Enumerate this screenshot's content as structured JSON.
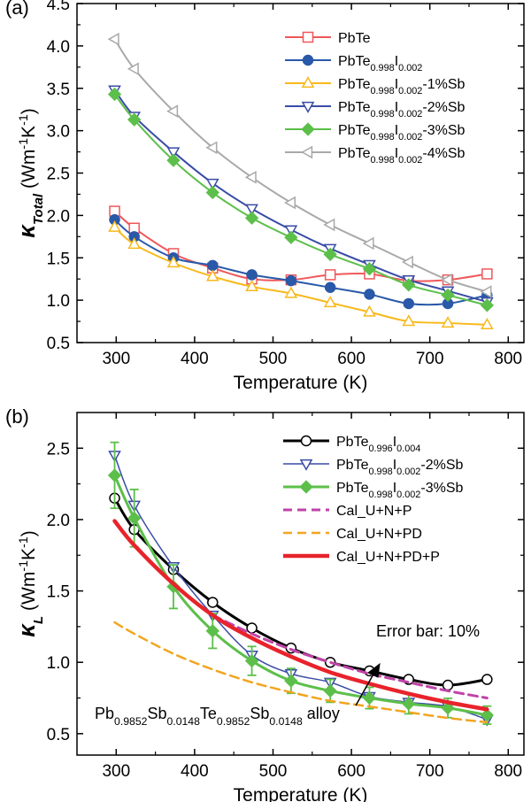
{
  "chart_data": [
    {
      "panel": "(a)",
      "type": "line",
      "xlabel": "Temperature (K)",
      "ylabel": {
        "main": "κ",
        "sub": "Total",
        "unit": "(Wm",
        "sup1": "-1",
        "mid": "K",
        "sup2": "-1",
        "end": ")"
      },
      "xlim": [
        250,
        820
      ],
      "ylim": [
        0.5,
        4.5
      ],
      "xticks": [
        "300",
        "400",
        "500",
        "600",
        "700",
        "800"
      ],
      "yticks": [
        "0.5",
        "1.0",
        "1.5",
        "2.0",
        "2.5",
        "3.0",
        "3.5",
        "4.0",
        "4.5"
      ],
      "legend_position": "top-right",
      "series": [
        {
          "name": "PbTe",
          "label_parts": [
            [
              "PbTe",
              ""
            ]
          ],
          "color": "#f0575a",
          "marker": "square",
          "filled": false,
          "x": [
            298,
            323,
            373,
            423,
            473,
            523,
            573,
            623,
            673,
            723,
            773
          ],
          "values": [
            2.05,
            1.85,
            1.55,
            1.38,
            1.25,
            1.24,
            1.3,
            1.31,
            1.23,
            1.24,
            1.31
          ]
        },
        {
          "name": "PbTe0.998I0.002",
          "label_parts": [
            [
              "PbTe",
              ""
            ],
            [
              "0.998",
              "sub"
            ],
            [
              "I",
              ""
            ],
            [
              "0.002",
              "sub"
            ]
          ],
          "color": "#2959a8",
          "marker": "circle",
          "filled": true,
          "x": [
            298,
            323,
            373,
            423,
            473,
            523,
            573,
            623,
            673,
            723,
            773
          ],
          "values": [
            1.95,
            1.75,
            1.5,
            1.41,
            1.3,
            1.23,
            1.15,
            1.07,
            0.96,
            0.96,
            1.06
          ]
        },
        {
          "name": "PbTe0.998I0.002-1%Sb",
          "label_parts": [
            [
              "PbTe",
              ""
            ],
            [
              "0.998",
              "sub"
            ],
            [
              "I",
              ""
            ],
            [
              "0.002",
              "sub"
            ],
            [
              "-1%Sb",
              ""
            ]
          ],
          "color": "#f7b91b",
          "marker": "triangle-up",
          "filled": false,
          "x": [
            298,
            323,
            373,
            423,
            473,
            523,
            573,
            623,
            673,
            723,
            773
          ],
          "values": [
            1.86,
            1.66,
            1.44,
            1.28,
            1.16,
            1.08,
            0.97,
            0.86,
            0.75,
            0.73,
            0.71
          ]
        },
        {
          "name": "PbTe0.998I0.002-2%Sb",
          "label_parts": [
            [
              "PbTe",
              ""
            ],
            [
              "0.998",
              "sub"
            ],
            [
              "I",
              ""
            ],
            [
              "0.002",
              "sub"
            ],
            [
              "-2%Sb",
              ""
            ]
          ],
          "color": "#3a4ca6",
          "marker": "triangle-down",
          "filled": false,
          "x": [
            298,
            323,
            373,
            423,
            473,
            523,
            573,
            623,
            673,
            723,
            773
          ],
          "values": [
            3.48,
            3.17,
            2.75,
            2.38,
            2.08,
            1.83,
            1.61,
            1.42,
            1.24,
            1.11,
            0.98
          ]
        },
        {
          "name": "PbTe0.998I0.002-3%Sb",
          "label_parts": [
            [
              "PbTe",
              ""
            ],
            [
              "0.998",
              "sub"
            ],
            [
              "I",
              ""
            ],
            [
              "0.002",
              "sub"
            ],
            [
              "-3%Sb",
              ""
            ]
          ],
          "color": "#5cbf4a",
          "marker": "diamond",
          "filled": true,
          "x": [
            298,
            323,
            373,
            423,
            473,
            523,
            573,
            623,
            673,
            723,
            773
          ],
          "values": [
            3.43,
            3.13,
            2.65,
            2.27,
            1.97,
            1.74,
            1.54,
            1.37,
            1.18,
            1.06,
            0.94
          ]
        },
        {
          "name": "PbTe0.998I0.002-4%Sb",
          "label_parts": [
            [
              "PbTe",
              ""
            ],
            [
              "0.998",
              "sub"
            ],
            [
              "I",
              ""
            ],
            [
              "0.002",
              "sub"
            ],
            [
              "-4%Sb",
              ""
            ]
          ],
          "color": "#a9a9a9",
          "marker": "triangle-left",
          "filled": false,
          "x": [
            298,
            323,
            373,
            423,
            473,
            523,
            573,
            623,
            673,
            723,
            773
          ],
          "values": [
            4.08,
            3.73,
            3.23,
            2.8,
            2.45,
            2.15,
            1.89,
            1.67,
            1.45,
            1.24,
            1.1
          ]
        }
      ]
    },
    {
      "panel": "(b)",
      "type": "line",
      "xlabel": "Temperature (K)",
      "ylabel": {
        "main": "κ",
        "sub": "L",
        "unit": "(Wm",
        "sup1": "-1",
        "mid": "K",
        "sup2": "-1",
        "end": ")"
      },
      "xlim": [
        250,
        820
      ],
      "ylim": [
        0.35,
        2.75
      ],
      "xticks": [
        "300",
        "400",
        "500",
        "600",
        "700",
        "800"
      ],
      "yticks": [
        "0.5",
        "1.0",
        "1.5",
        "2.0",
        "2.5"
      ],
      "legend_position": "top-right",
      "annotations": {
        "error_bar_note": "Error bar: 10%",
        "alloy_label_parts": [
          [
            "Pb",
            ""
          ],
          [
            "0.9852",
            "sub"
          ],
          [
            "Sb",
            ""
          ],
          [
            "0.0148",
            "sub"
          ],
          [
            "Te",
            ""
          ],
          [
            "0.9852",
            "sub"
          ],
          [
            "Sb",
            ""
          ],
          [
            "0.0148",
            "sub"
          ],
          [
            " alloy",
            ""
          ]
        ]
      },
      "series": [
        {
          "name": "PbTe0.996I0.004",
          "label_parts": [
            [
              "PbTe",
              ""
            ],
            [
              "0.996",
              "sub"
            ],
            [
              "I",
              ""
            ],
            [
              "0.004",
              "sub"
            ]
          ],
          "color": "#000000",
          "marker": "circle",
          "filled": false,
          "line_width": 3,
          "x": [
            298,
            323,
            373,
            423,
            473,
            523,
            573,
            623,
            673,
            723,
            773
          ],
          "values": [
            2.15,
            1.93,
            1.65,
            1.42,
            1.24,
            1.1,
            1.0,
            0.94,
            0.88,
            0.84,
            0.88
          ]
        },
        {
          "name": "PbTe0.998I0.002-2%Sb",
          "label_parts": [
            [
              "PbTe",
              ""
            ],
            [
              "0.998",
              "sub"
            ],
            [
              "I",
              ""
            ],
            [
              "0.002",
              "sub"
            ],
            [
              "-2%Sb",
              ""
            ]
          ],
          "color": "#3a4ca6",
          "marker": "triangle-down",
          "filled": false,
          "line_width": 1.5,
          "x": [
            298,
            323,
            373,
            423,
            473,
            523,
            573,
            623,
            673,
            723,
            773
          ],
          "values": [
            2.45,
            2.1,
            1.67,
            1.33,
            1.05,
            0.92,
            0.86,
            0.76,
            0.72,
            0.69,
            0.6
          ]
        },
        {
          "name": "PbTe0.998I0.002-3%Sb",
          "label_parts": [
            [
              "PbTe",
              ""
            ],
            [
              "0.998",
              "sub"
            ],
            [
              "I",
              ""
            ],
            [
              "0.002",
              "sub"
            ],
            [
              "-3%Sb",
              ""
            ]
          ],
          "color": "#5cbf4a",
          "marker": "diamond",
          "filled": true,
          "line_width": 3,
          "error_bars": 0.1,
          "x": [
            298,
            323,
            373,
            423,
            473,
            523,
            573,
            623,
            673,
            723,
            773
          ],
          "values": [
            2.31,
            2.01,
            1.53,
            1.22,
            1.01,
            0.87,
            0.8,
            0.75,
            0.71,
            0.68,
            0.63
          ]
        },
        {
          "name": "Cal_U+N+P",
          "label_parts": [
            [
              "Cal_U+N+P",
              ""
            ]
          ],
          "color": "#c043a8",
          "marker": "none",
          "dash": "10,6",
          "line_width": 3,
          "x": [
            423,
            473,
            523,
            573,
            623,
            673,
            723,
            773
          ],
          "values": [
            1.33,
            1.2,
            1.09,
            1.0,
            0.92,
            0.86,
            0.8,
            0.75
          ]
        },
        {
          "name": "Cal_U+N+PD",
          "label_parts": [
            [
              "Cal_U+N+PD",
              ""
            ]
          ],
          "color": "#f2a51f",
          "marker": "none",
          "dash": "10,6",
          "line_width": 2.5,
          "x": [
            298,
            323,
            373,
            423,
            473,
            523,
            573,
            623,
            673,
            723,
            773
          ],
          "values": [
            1.28,
            1.2,
            1.06,
            0.95,
            0.86,
            0.79,
            0.73,
            0.69,
            0.65,
            0.61,
            0.58
          ]
        },
        {
          "name": "Cal_U+N+PD+P",
          "label_parts": [
            [
              "Cal_U+N+PD+P",
              ""
            ]
          ],
          "color": "#e8232b",
          "marker": "none",
          "line_width": 4.5,
          "x": [
            298,
            323,
            373,
            423,
            473,
            523,
            573,
            623,
            673,
            723,
            773
          ],
          "values": [
            1.99,
            1.82,
            1.55,
            1.33,
            1.17,
            1.04,
            0.93,
            0.85,
            0.78,
            0.72,
            0.67
          ]
        }
      ]
    }
  ]
}
